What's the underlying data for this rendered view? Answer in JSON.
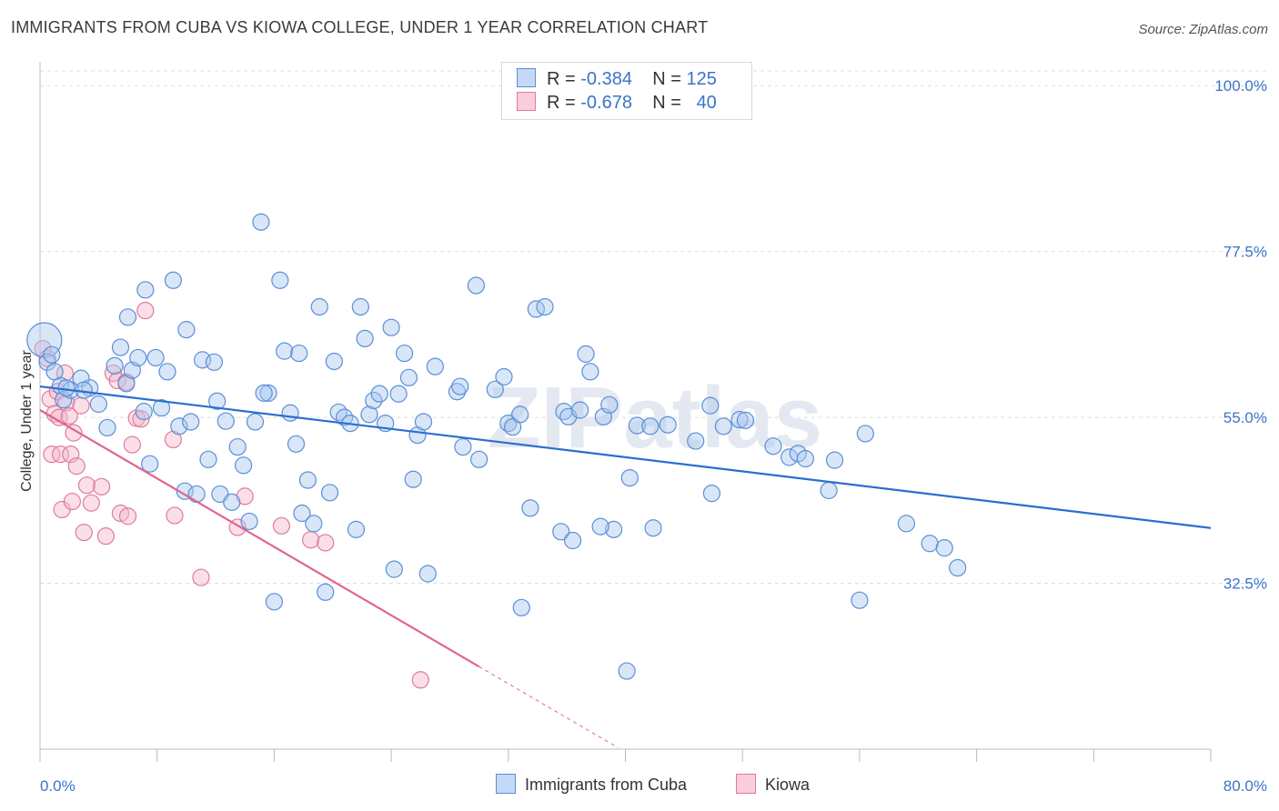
{
  "title": "IMMIGRANTS FROM CUBA VS KIOWA COLLEGE, UNDER 1 YEAR CORRELATION CHART",
  "source": "Source: ZipAtlas.com",
  "watermark": "ZIPatlas",
  "colors": {
    "blue_fill": "#a8c8f0",
    "blue_stroke": "#5b8fd6",
    "blue_line": "#2a6ed0",
    "pink_fill": "#f5b8cc",
    "pink_stroke": "#e07b9d",
    "pink_line": "#e0648e",
    "tick_text": "#3b74c8",
    "grid": "#dddddd"
  },
  "legend": {
    "rows": [
      {
        "r_label": "R =",
        "r_value": "-0.384",
        "n_label": "N =",
        "n_value": "125"
      },
      {
        "r_label": "R =",
        "r_value": "-0.678",
        "n_label": "N =",
        "n_value": "40"
      }
    ]
  },
  "bottom_legend": [
    "Immigrants from Cuba",
    "Kiowa"
  ],
  "chart_data": {
    "type": "scatter",
    "xlabel": "",
    "ylabel": "College, Under 1 year",
    "x_tick_labels": [
      "0.0%",
      "80.0%"
    ],
    "y_tick_labels": [
      "100.0%",
      "77.5%",
      "55.0%",
      "32.5%"
    ],
    "xlim": [
      0,
      80
    ],
    "ylim": [
      10,
      102
    ],
    "y_ticks": [
      100,
      77.5,
      55,
      32.5
    ],
    "series": [
      {
        "name": "Immigrants from Cuba",
        "trend": {
          "x": [
            0,
            80
          ],
          "y": [
            59.2,
            40.0
          ]
        },
        "points": [
          [
            0.3,
            65.5
          ],
          [
            0.5,
            62.5
          ],
          [
            1.0,
            61.2
          ],
          [
            1.4,
            59.3
          ],
          [
            1.6,
            57.4
          ],
          [
            2.1,
            58.7
          ],
          [
            2.8,
            60.3
          ],
          [
            3.4,
            59.0
          ],
          [
            4.0,
            56.8
          ],
          [
            4.6,
            53.6
          ],
          [
            5.1,
            62.0
          ],
          [
            5.5,
            64.5
          ],
          [
            5.9,
            59.6
          ],
          [
            6.3,
            61.4
          ],
          [
            6.7,
            63.1
          ],
          [
            7.1,
            55.8
          ],
          [
            7.5,
            48.7
          ],
          [
            7.9,
            63.1
          ],
          [
            8.3,
            56.3
          ],
          [
            8.7,
            61.2
          ],
          [
            9.1,
            73.6
          ],
          [
            9.5,
            53.8
          ],
          [
            9.9,
            45.0
          ],
          [
            10.3,
            54.4
          ],
          [
            10.7,
            44.6
          ],
          [
            11.1,
            62.8
          ],
          [
            11.5,
            49.3
          ],
          [
            11.9,
            62.5
          ],
          [
            12.3,
            44.6
          ],
          [
            12.7,
            54.5
          ],
          [
            13.1,
            43.5
          ],
          [
            13.5,
            51.0
          ],
          [
            13.9,
            48.5
          ],
          [
            14.3,
            40.9
          ],
          [
            14.7,
            54.4
          ],
          [
            15.1,
            81.5
          ],
          [
            15.6,
            58.3
          ],
          [
            16.0,
            30.0
          ],
          [
            16.4,
            73.6
          ],
          [
            16.7,
            64.0
          ],
          [
            17.1,
            55.6
          ],
          [
            17.5,
            51.4
          ],
          [
            17.9,
            42.0
          ],
          [
            18.3,
            46.5
          ],
          [
            18.7,
            40.6
          ],
          [
            19.1,
            70.0
          ],
          [
            19.5,
            31.3
          ],
          [
            19.8,
            44.8
          ],
          [
            20.1,
            62.6
          ],
          [
            20.4,
            55.7
          ],
          [
            20.8,
            55.0
          ],
          [
            21.2,
            54.2
          ],
          [
            21.6,
            39.8
          ],
          [
            21.9,
            70.0
          ],
          [
            22.2,
            65.7
          ],
          [
            22.5,
            55.4
          ],
          [
            22.8,
            57.3
          ],
          [
            23.2,
            58.2
          ],
          [
            23.6,
            54.2
          ],
          [
            24.0,
            67.2
          ],
          [
            24.2,
            34.4
          ],
          [
            24.5,
            58.2
          ],
          [
            24.9,
            63.7
          ],
          [
            25.2,
            60.4
          ],
          [
            25.5,
            46.6
          ],
          [
            25.8,
            52.6
          ],
          [
            26.2,
            54.4
          ],
          [
            26.5,
            33.8
          ],
          [
            27.0,
            61.9
          ],
          [
            28.5,
            58.5
          ],
          [
            28.9,
            51.0
          ],
          [
            29.8,
            72.9
          ],
          [
            30.0,
            49.3
          ],
          [
            31.1,
            58.8
          ],
          [
            31.7,
            60.5
          ],
          [
            32.0,
            54.2
          ],
          [
            32.3,
            53.7
          ],
          [
            32.8,
            55.4
          ],
          [
            32.9,
            29.2
          ],
          [
            33.5,
            42.7
          ],
          [
            33.9,
            69.7
          ],
          [
            34.5,
            70.0
          ],
          [
            35.6,
            39.5
          ],
          [
            35.8,
            55.8
          ],
          [
            36.1,
            55.1
          ],
          [
            36.4,
            38.3
          ],
          [
            37.3,
            63.6
          ],
          [
            37.6,
            61.2
          ],
          [
            38.5,
            55.1
          ],
          [
            38.9,
            56.7
          ],
          [
            39.2,
            39.8
          ],
          [
            40.3,
            46.8
          ],
          [
            40.8,
            53.9
          ],
          [
            41.7,
            53.8
          ],
          [
            41.9,
            40.0
          ],
          [
            42.9,
            54.0
          ],
          [
            44.8,
            51.8
          ],
          [
            45.8,
            56.6
          ],
          [
            45.9,
            44.7
          ],
          [
            46.7,
            53.8
          ],
          [
            47.8,
            54.7
          ],
          [
            48.2,
            54.6
          ],
          [
            50.1,
            51.1
          ],
          [
            51.2,
            49.6
          ],
          [
            51.8,
            50.1
          ],
          [
            53.9,
            45.1
          ],
          [
            54.3,
            49.2
          ],
          [
            56.0,
            30.2
          ],
          [
            56.4,
            52.8
          ],
          [
            59.2,
            40.6
          ],
          [
            60.8,
            37.9
          ],
          [
            61.8,
            37.3
          ],
          [
            62.7,
            34.6
          ],
          [
            0.8,
            63.5
          ],
          [
            1.8,
            59.0
          ],
          [
            3.0,
            58.7
          ],
          [
            6.0,
            68.6
          ],
          [
            7.2,
            72.3
          ],
          [
            10.0,
            66.9
          ],
          [
            12.1,
            57.2
          ],
          [
            15.3,
            58.3
          ],
          [
            17.7,
            63.7
          ],
          [
            28.7,
            59.2
          ],
          [
            36.9,
            56.0
          ],
          [
            38.3,
            40.2
          ],
          [
            40.1,
            20.6
          ],
          [
            52.3,
            49.4
          ]
        ]
      },
      {
        "name": "Kiowa",
        "trend": {
          "x": [
            0,
            30
          ],
          "y": [
            56.0,
            21.2
          ]
        },
        "trend_dashed": {
          "x": [
            30,
            39.5
          ],
          "y": [
            21.2,
            10.2
          ]
        },
        "points": [
          [
            0.2,
            64.3
          ],
          [
            0.5,
            63.0
          ],
          [
            0.7,
            57.5
          ],
          [
            0.8,
            50.0
          ],
          [
            1.0,
            55.5
          ],
          [
            1.2,
            58.5
          ],
          [
            1.3,
            55.0
          ],
          [
            1.4,
            50.0
          ],
          [
            1.5,
            42.5
          ],
          [
            1.7,
            61.0
          ],
          [
            1.8,
            57.0
          ],
          [
            2.0,
            55.2
          ],
          [
            2.1,
            50.0
          ],
          [
            2.2,
            43.6
          ],
          [
            2.3,
            52.9
          ],
          [
            2.5,
            48.4
          ],
          [
            2.8,
            56.6
          ],
          [
            3.0,
            39.4
          ],
          [
            3.2,
            45.8
          ],
          [
            3.5,
            43.4
          ],
          [
            4.2,
            45.6
          ],
          [
            4.5,
            38.9
          ],
          [
            5.0,
            61.0
          ],
          [
            5.3,
            60.0
          ],
          [
            5.5,
            42.0
          ],
          [
            6.0,
            41.6
          ],
          [
            6.3,
            51.3
          ],
          [
            6.6,
            54.9
          ],
          [
            6.9,
            54.8
          ],
          [
            7.2,
            69.5
          ],
          [
            9.1,
            52.0
          ],
          [
            9.2,
            41.7
          ],
          [
            11.0,
            33.3
          ],
          [
            13.5,
            40.1
          ],
          [
            14.0,
            44.3
          ],
          [
            16.5,
            40.3
          ],
          [
            18.5,
            38.4
          ],
          [
            19.5,
            38.0
          ],
          [
            26.0,
            19.4
          ],
          [
            5.9,
            59.8
          ]
        ]
      }
    ]
  }
}
